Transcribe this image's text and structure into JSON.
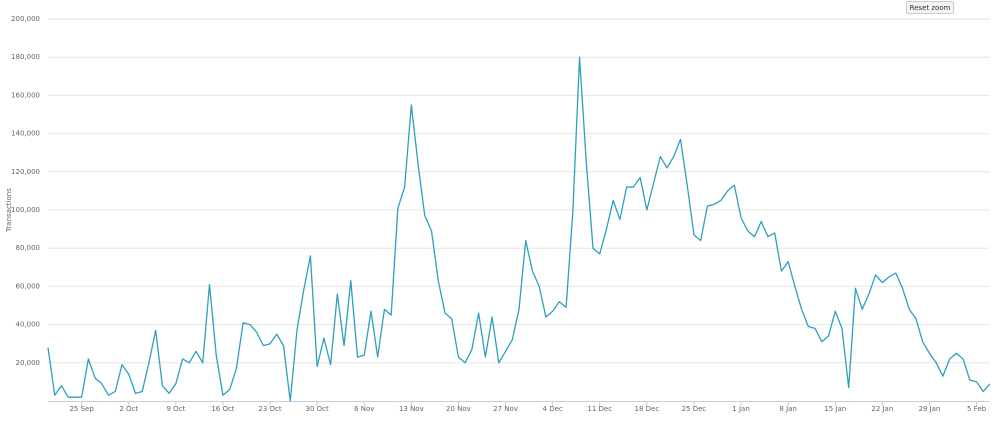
{
  "chart_data": {
    "type": "line",
    "ylabel": "Transactions",
    "button": "Reset zoom",
    "color": "#2f9fc0",
    "grid": true,
    "categories": [
      null,
      null,
      null,
      null,
      null,
      "25 Sep",
      null,
      null,
      null,
      null,
      null,
      null,
      "2 Oct",
      null,
      null,
      null,
      null,
      null,
      null,
      "9 Oct",
      null,
      null,
      null,
      null,
      null,
      null,
      "16 Oct",
      null,
      null,
      null,
      null,
      null,
      null,
      "23 Oct",
      null,
      null,
      null,
      null,
      null,
      null,
      "30 Oct",
      null,
      null,
      null,
      null,
      null,
      null,
      "6 Nov",
      null,
      null,
      null,
      null,
      null,
      null,
      "13 Nov",
      null,
      null,
      null,
      null,
      null,
      null,
      "20 Nov",
      null,
      null,
      null,
      null,
      null,
      null,
      "27 Nov",
      null,
      null,
      null,
      null,
      null,
      null,
      "4 Dec",
      null,
      null,
      null,
      null,
      null,
      null,
      "11 Dec",
      null,
      null,
      null,
      null,
      null,
      null,
      "18 Dec",
      null,
      null,
      null,
      null,
      null,
      null,
      "25 Dec",
      null,
      null,
      null,
      null,
      null,
      null,
      "1 Jan",
      null,
      null,
      null,
      null,
      null,
      null,
      "8 Jan",
      null,
      null,
      null,
      null,
      null,
      null,
      "15 Jan",
      null,
      null,
      null,
      null,
      null,
      null,
      "22 Jan",
      null,
      null,
      null,
      null,
      null,
      null,
      "29 Jan",
      null,
      null,
      null,
      null,
      null,
      null,
      "5 Feb",
      null,
      null
    ],
    "values": [
      28000,
      3000,
      8000,
      2000,
      2000,
      2000,
      22000,
      12000,
      9000,
      3000,
      5000,
      19000,
      14000,
      4000,
      5000,
      20000,
      37000,
      8000,
      4000,
      9000,
      22000,
      20000,
      26000,
      20000,
      61000,
      24000,
      3000,
      6000,
      17000,
      41000,
      40000,
      36000,
      29000,
      30000,
      35000,
      29000,
      0,
      37000,
      58000,
      76000,
      18000,
      33000,
      19000,
      56000,
      29000,
      63000,
      23000,
      24000,
      47000,
      23000,
      48000,
      45000,
      101000,
      112000,
      155000,
      124000,
      97000,
      89000,
      63000,
      46000,
      43000,
      23000,
      20000,
      27000,
      46000,
      23000,
      44000,
      20000,
      26000,
      32000,
      48000,
      84000,
      68000,
      60000,
      44000,
      47000,
      52000,
      49000,
      99000,
      180000,
      125000,
      80000,
      77000,
      90000,
      105000,
      95000,
      112000,
      112000,
      117000,
      100000,
      114000,
      128000,
      122000,
      128000,
      137000,
      113000,
      87000,
      84000,
      102000,
      103000,
      105000,
      110000,
      113000,
      96000,
      89000,
      86000,
      94000,
      86000,
      88000,
      68000,
      73000,
      60000,
      48000,
      39000,
      38000,
      31000,
      34000,
      47000,
      38000,
      7000,
      59000,
      48000,
      56000,
      66000,
      62000,
      65000,
      67000,
      59000,
      48000,
      43000,
      31000,
      25000,
      20000,
      13000,
      22000,
      25000,
      22000,
      11000,
      10000,
      5000,
      9000
    ],
    "ylim": [
      0,
      200000
    ],
    "yticks": [
      {
        "value": 20000,
        "label": "20,000"
      },
      {
        "value": 40000,
        "label": "40,000"
      },
      {
        "value": 60000,
        "label": "60,000"
      },
      {
        "value": 80000,
        "label": "80,000"
      },
      {
        "value": 100000,
        "label": "100,000"
      },
      {
        "value": 120000,
        "label": "120,000"
      },
      {
        "value": 140000,
        "label": "140,000"
      },
      {
        "value": 160000,
        "label": "160,000"
      },
      {
        "value": 180000,
        "label": "180,000"
      },
      {
        "value": 200000,
        "label": "200,000"
      }
    ]
  }
}
